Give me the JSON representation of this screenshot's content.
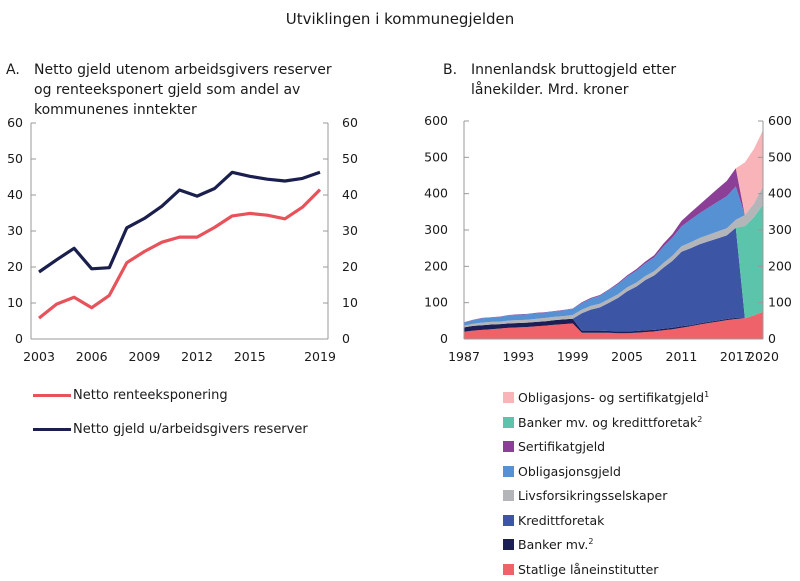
{
  "title": "Utviklingen i kommunegjelden",
  "chart_data": [
    {
      "type": "line",
      "panel_letter": "A.",
      "title": "Netto gjeld utenom arbeidsgivers reserver og renteeksponert gjeld som andel av kommunenes inntekter",
      "xlabel": "",
      "ylabel": "",
      "ylim": [
        0,
        60
      ],
      "yticks": [
        0,
        10,
        20,
        30,
        40,
        50,
        60
      ],
      "xtick_labels": [
        "2003",
        "2006",
        "2009",
        "2012",
        "2015",
        "2019"
      ],
      "x": [
        2003,
        2004,
        2005,
        2006,
        2007,
        2008,
        2009,
        2010,
        2011,
        2012,
        2013,
        2014,
        2015,
        2016,
        2017,
        2018,
        2019
      ],
      "grid": false,
      "legend_position": "bottom",
      "series": [
        {
          "name": "Netto renteeksponering",
          "color": "#e8525a",
          "values": [
            5.8,
            9.7,
            11.6,
            8.7,
            12.1,
            21.2,
            24.3,
            26.9,
            28.3,
            28.3,
            31.0,
            34.2,
            34.9,
            34.4,
            33.4,
            36.6,
            41.5
          ]
        },
        {
          "name": "Netto gjeld u/arbeidsgivers reserver",
          "color": "#1a1f4e",
          "values": [
            18.6,
            22.0,
            25.2,
            19.5,
            19.8,
            30.9,
            33.5,
            36.9,
            41.4,
            39.7,
            41.8,
            46.3,
            45.2,
            44.4,
            43.9,
            44.6,
            46.3
          ]
        }
      ]
    },
    {
      "type": "area",
      "stacked": true,
      "panel_letter": "B.",
      "title": "Innenlandsk bruttogjeld etter lånekilder. Mrd. kroner",
      "xlabel": "",
      "ylabel": "",
      "ylim": [
        0,
        600
      ],
      "yticks": [
        0,
        100,
        200,
        300,
        400,
        500,
        600
      ],
      "xlim": [
        1987,
        2020
      ],
      "xtick_labels": [
        "1987",
        "1993",
        "1999",
        "2005",
        "2011",
        "2017",
        "2020"
      ],
      "x": [
        1987,
        1988,
        1989,
        1990,
        1991,
        1992,
        1993,
        1994,
        1995,
        1996,
        1997,
        1998,
        1999,
        2000,
        2001,
        2002,
        2003,
        2004,
        2005,
        2006,
        2007,
        2008,
        2009,
        2010,
        2011,
        2012,
        2013,
        2014,
        2015,
        2016,
        2017,
        2018,
        2019,
        2020
      ],
      "grid": false,
      "legend_position": "bottom",
      "series": [
        {
          "name": "Statlige låneinstitutter",
          "color": "#f0626a",
          "values": [
            20,
            23,
            25,
            27,
            29,
            31,
            32,
            33,
            35,
            37,
            39,
            41,
            43,
            17,
            17,
            17,
            17,
            16,
            16,
            17,
            19,
            21,
            24,
            27,
            31,
            35,
            40,
            44,
            48,
            52,
            55,
            57,
            65,
            75
          ]
        },
        {
          "name": "Banker mv.",
          "footnote": "2",
          "color": "#1b1f55",
          "values": [
            12,
            13,
            13,
            13,
            12,
            12,
            12,
            12,
            12,
            12,
            13,
            13,
            13,
            6,
            6,
            6,
            5,
            5,
            5,
            5,
            5,
            4,
            4,
            4,
            4,
            3,
            3,
            3,
            3,
            3,
            3,
            0,
            0,
            0
          ]
        },
        {
          "name": "Kredittforetak",
          "color": "#3c55a5",
          "values": [
            0,
            0,
            0,
            0,
            0,
            0,
            0,
            0,
            0,
            0,
            0,
            0,
            0,
            48,
            58,
            64,
            78,
            92,
            110,
            122,
            138,
            150,
            168,
            184,
            205,
            212,
            218,
            222,
            226,
            230,
            248,
            0,
            0,
            0
          ]
        },
        {
          "name": "Livsforsikringsselskaper",
          "color": "#b4b5b9",
          "values": [
            5,
            6,
            7,
            7,
            7,
            8,
            8,
            8,
            9,
            9,
            9,
            9,
            10,
            10,
            10,
            10,
            10,
            10,
            11,
            11,
            11,
            12,
            13,
            14,
            15,
            16,
            17,
            18,
            19,
            20,
            22,
            0,
            0,
            0
          ]
        },
        {
          "name": "Obligasjonsgjeld",
          "color": "#5691d3",
          "values": [
            8,
            10,
            12,
            12,
            13,
            14,
            15,
            15,
            15,
            15,
            15,
            16,
            17,
            18,
            20,
            22,
            25,
            28,
            30,
            33,
            35,
            38,
            45,
            50,
            55,
            62,
            68,
            75,
            82,
            88,
            92,
            0,
            0,
            0
          ]
        },
        {
          "name": "Sertifikatgjeld",
          "color": "#8b3f97",
          "values": [
            1,
            1,
            1,
            1,
            1,
            1,
            1,
            1,
            1,
            1,
            1,
            1,
            1,
            2,
            2,
            2,
            2,
            3,
            3,
            4,
            5,
            6,
            8,
            10,
            15,
            20,
            24,
            30,
            36,
            42,
            50,
            0,
            0,
            0
          ]
        },
        {
          "name": "Banker mv. og kredittforetak",
          "footnote": "2",
          "color": "#5bc4ab",
          "values": [
            0,
            0,
            0,
            0,
            0,
            0,
            0,
            0,
            0,
            0,
            0,
            0,
            0,
            0,
            0,
            0,
            0,
            0,
            0,
            0,
            0,
            0,
            0,
            0,
            0,
            0,
            0,
            0,
            0,
            0,
            0,
            254,
            270,
            295
          ]
        },
        {
          "name": "Obligasjons- og sertifikatgjeld",
          "footnote": "1",
          "color": "#f8b4b9",
          "values": [
            0,
            0,
            0,
            0,
            0,
            0,
            0,
            0,
            0,
            0,
            0,
            0,
            0,
            0,
            0,
            0,
            0,
            0,
            0,
            0,
            0,
            0,
            0,
            0,
            0,
            0,
            0,
            0,
            0,
            0,
            0,
            145,
            150,
            155
          ]
        }
      ],
      "extra_layer_note": "Livsforsikringsselskaper continues 2018-2020",
      "livsforsikring_2018_2020": [
        30,
        38,
        50
      ],
      "legend_order": [
        "Obligasjons- og sertifikatgjeld",
        "Banker mv. og kredittforetak",
        "Sertifikatgjeld",
        "Obligasjonsgjeld",
        "Livsforsikringsselskaper",
        "Kredittforetak",
        "Banker mv.",
        "Statlige låneinstitutter"
      ]
    }
  ]
}
